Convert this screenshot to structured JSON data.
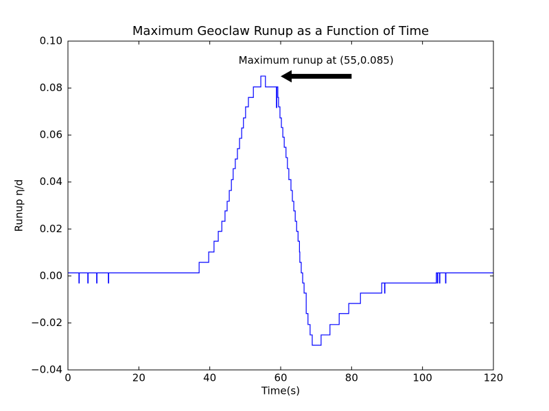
{
  "chart_data": {
    "type": "line",
    "drawstyle": "steps-post",
    "title": "Maximum Geoclaw Runup as a Function of Time",
    "xlabel": "Time(s)",
    "ylabel": "Runup η/d",
    "x": [
      0,
      3.1,
      3.2,
      5.6,
      5.7,
      8.1,
      8.2,
      11.4,
      11.5,
      37,
      39.7,
      41.2,
      42.4,
      43.4,
      44.3,
      44.9,
      45.5,
      46.1,
      46.6,
      47.2,
      47.8,
      48.4,
      49,
      49.5,
      50.1,
      50.9,
      52.3,
      54.4,
      55.7,
      58.8,
      58.9,
      59.2,
      59.4,
      59.8,
      60.2,
      60.6,
      61,
      61.5,
      61.9,
      62.3,
      62.9,
      63.3,
      63.7,
      64.1,
      64.5,
      64.9,
      65.3,
      65.4,
      65.8,
      66.2,
      66.6,
      67.2,
      67.7,
      68.3,
      68.9,
      71.4,
      73.9,
      76.5,
      79.2,
      82.5,
      88.5,
      89.3,
      89.4,
      103.9,
      104.2,
      104.3,
      104.8,
      104.9,
      106.5,
      106.6,
      120
    ],
    "series": [
      {
        "name": "runup",
        "color": "#0000ff",
        "values": [
          0.0013,
          -0.003,
          0.0013,
          -0.003,
          0.0013,
          -0.003,
          0.0013,
          -0.003,
          0.0013,
          0.0058,
          0.0102,
          0.0148,
          0.019,
          0.0233,
          0.0277,
          0.0318,
          0.0364,
          0.041,
          0.0457,
          0.0498,
          0.0542,
          0.0586,
          0.063,
          0.0673,
          0.072,
          0.076,
          0.0805,
          0.0851,
          0.0805,
          0.0717,
          0.0805,
          0.076,
          0.072,
          0.0673,
          0.0632,
          0.0591,
          0.0548,
          0.0504,
          0.0457,
          0.041,
          0.0364,
          0.0318,
          0.0277,
          0.0233,
          0.019,
          0.0148,
          0.0102,
          0.0058,
          0.0013,
          -0.003,
          -0.0073,
          -0.016,
          -0.0207,
          -0.0251,
          -0.0295,
          -0.0251,
          -0.0207,
          -0.016,
          -0.0117,
          -0.0073,
          -0.003,
          -0.0073,
          -0.003,
          0.0013,
          -0.003,
          0.0013,
          -0.003,
          0.0013,
          -0.003,
          0.0013,
          0.0013
        ]
      }
    ],
    "annotation": {
      "text": "Maximum runup at (55,0.085)",
      "xy": [
        60,
        0.085
      ],
      "xytext": [
        80,
        0.085
      ]
    },
    "xlim": [
      0,
      120
    ],
    "xticks": [
      0,
      20,
      40,
      60,
      80,
      100,
      120
    ],
    "ylim": [
      -0.04,
      0.1
    ],
    "yticks": [
      {
        "value": -0.04,
        "label": "−0.04"
      },
      {
        "value": -0.02,
        "label": "−0.02"
      },
      {
        "value": 0,
        "label": "0.00"
      },
      {
        "value": 0.02,
        "label": "0.02"
      },
      {
        "value": 0.04,
        "label": "0.04"
      },
      {
        "value": 0.06,
        "label": "0.06"
      },
      {
        "value": 0.08,
        "label": "0.08"
      },
      {
        "value": 0.1,
        "label": "0.10"
      }
    ],
    "grid": false
  }
}
